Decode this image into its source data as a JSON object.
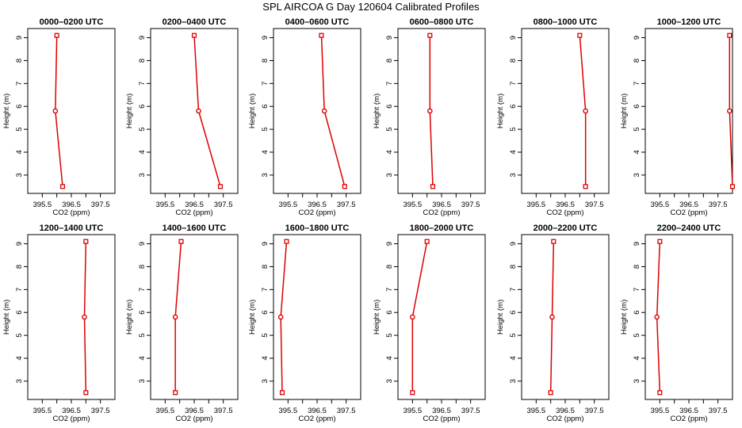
{
  "title": "SPL AIRCOA G  Day 120604  Calibrated Profiles",
  "colors": {
    "series": "#dd0000",
    "axis": "#000000",
    "background": "#ffffff"
  },
  "chart_data": [
    {
      "type": "line",
      "title": "0000–0200 UTC",
      "xlabel": "CO2 (ppm)",
      "ylabel": "Height (m)",
      "xlim": [
        395.0,
        398.0
      ],
      "ylim": [
        2.2,
        9.4
      ],
      "xticks": [
        "395.5",
        "396.5",
        "397.5"
      ],
      "yticks": [
        "3",
        "4",
        "5",
        "6",
        "7",
        "8",
        "9"
      ],
      "x": [
        396.0,
        395.95,
        396.2
      ],
      "y": [
        9.1,
        5.8,
        2.5
      ]
    },
    {
      "type": "line",
      "title": "0200–0400 UTC",
      "xlabel": "CO2 (ppm)",
      "ylabel": "Height (m)",
      "xlim": [
        395.0,
        398.0
      ],
      "ylim": [
        2.2,
        9.4
      ],
      "xticks": [
        "395.5",
        "396.5",
        "397.5"
      ],
      "yticks": [
        "3",
        "4",
        "5",
        "6",
        "7",
        "8",
        "9"
      ],
      "x": [
        396.5,
        396.65,
        397.4
      ],
      "y": [
        9.1,
        5.8,
        2.5
      ]
    },
    {
      "type": "line",
      "title": "0400–0600 UTC",
      "xlabel": "CO2 (ppm)",
      "ylabel": "Height (m)",
      "xlim": [
        395.0,
        398.0
      ],
      "ylim": [
        2.2,
        9.4
      ],
      "xticks": [
        "395.5",
        "396.5",
        "397.5"
      ],
      "yticks": [
        "3",
        "4",
        "5",
        "6",
        "7",
        "8",
        "9"
      ],
      "x": [
        396.65,
        396.75,
        397.45
      ],
      "y": [
        9.1,
        5.8,
        2.5
      ]
    },
    {
      "type": "line",
      "title": "0600–0800 UTC",
      "xlabel": "CO2 (ppm)",
      "ylabel": "Height (m)",
      "xlim": [
        395.0,
        398.0
      ],
      "ylim": [
        2.2,
        9.4
      ],
      "xticks": [
        "395.5",
        "396.5",
        "397.5"
      ],
      "yticks": [
        "3",
        "4",
        "5",
        "6",
        "7",
        "8",
        "9"
      ],
      "x": [
        396.1,
        396.1,
        396.2
      ],
      "y": [
        9.1,
        5.8,
        2.5
      ]
    },
    {
      "type": "line",
      "title": "0800–1000 UTC",
      "xlabel": "CO2 (ppm)",
      "ylabel": "Height (m)",
      "xlim": [
        395.0,
        398.0
      ],
      "ylim": [
        2.2,
        9.4
      ],
      "xticks": [
        "395.5",
        "396.5",
        "397.5"
      ],
      "yticks": [
        "3",
        "4",
        "5",
        "6",
        "7",
        "8",
        "9"
      ],
      "x": [
        397.0,
        397.2,
        397.2
      ],
      "y": [
        9.1,
        5.8,
        2.5
      ]
    },
    {
      "type": "line",
      "title": "1000–1200 UTC",
      "xlabel": "CO2 (ppm)",
      "ylabel": "Height (m)",
      "xlim": [
        395.0,
        398.0
      ],
      "ylim": [
        2.2,
        9.4
      ],
      "xticks": [
        "395.5",
        "396.5",
        "397.5"
      ],
      "yticks": [
        "3",
        "4",
        "5",
        "6",
        "7",
        "8",
        "9"
      ],
      "x": [
        397.9,
        397.9,
        398.0
      ],
      "y": [
        9.1,
        5.8,
        2.5
      ]
    },
    {
      "type": "line",
      "title": "1200–1400 UTC",
      "xlabel": "CO2 (ppm)",
      "ylabel": "Height (m)",
      "xlim": [
        395.0,
        398.0
      ],
      "ylim": [
        2.2,
        9.4
      ],
      "xticks": [
        "395.5",
        "396.5",
        "397.5"
      ],
      "yticks": [
        "3",
        "4",
        "5",
        "6",
        "7",
        "8",
        "9"
      ],
      "x": [
        397.0,
        396.95,
        397.0
      ],
      "y": [
        9.1,
        5.8,
        2.5
      ]
    },
    {
      "type": "line",
      "title": "1400–1600 UTC",
      "xlabel": "CO2 (ppm)",
      "ylabel": "Height (m)",
      "xlim": [
        395.0,
        398.0
      ],
      "ylim": [
        2.2,
        9.4
      ],
      "xticks": [
        "395.5",
        "396.5",
        "397.5"
      ],
      "yticks": [
        "3",
        "4",
        "5",
        "6",
        "7",
        "8",
        "9"
      ],
      "x": [
        396.05,
        395.85,
        395.85
      ],
      "y": [
        9.1,
        5.8,
        2.5
      ]
    },
    {
      "type": "line",
      "title": "1600–1800 UTC",
      "xlabel": "CO2 (ppm)",
      "ylabel": "Height (m)",
      "xlim": [
        395.0,
        398.0
      ],
      "ylim": [
        2.2,
        9.4
      ],
      "xticks": [
        "395.5",
        "396.5",
        "397.5"
      ],
      "yticks": [
        "3",
        "4",
        "5",
        "6",
        "7",
        "8",
        "9"
      ],
      "x": [
        395.45,
        395.25,
        395.3
      ],
      "y": [
        9.1,
        5.8,
        2.5
      ]
    },
    {
      "type": "line",
      "title": "1800–2000 UTC",
      "xlabel": "CO2 (ppm)",
      "ylabel": "Height (m)",
      "xlim": [
        395.0,
        398.0
      ],
      "ylim": [
        2.2,
        9.4
      ],
      "xticks": [
        "395.5",
        "396.5",
        "397.5"
      ],
      "yticks": [
        "3",
        "4",
        "5",
        "6",
        "7",
        "8",
        "9"
      ],
      "x": [
        396.0,
        395.5,
        395.5
      ],
      "y": [
        9.1,
        5.8,
        2.5
      ]
    },
    {
      "type": "line",
      "title": "2000–2200 UTC",
      "xlabel": "CO2 (ppm)",
      "ylabel": "Height (m)",
      "xlim": [
        395.0,
        398.0
      ],
      "ylim": [
        2.2,
        9.4
      ],
      "xticks": [
        "395.5",
        "396.5",
        "397.5"
      ],
      "yticks": [
        "3",
        "4",
        "5",
        "6",
        "7",
        "8",
        "9"
      ],
      "x": [
        396.1,
        396.05,
        396.0
      ],
      "y": [
        9.1,
        5.8,
        2.5
      ]
    },
    {
      "type": "line",
      "title": "2200–2400 UTC",
      "xlabel": "CO2 (ppm)",
      "ylabel": "Height (m)",
      "xlim": [
        395.0,
        398.0
      ],
      "ylim": [
        2.2,
        9.4
      ],
      "xticks": [
        "395.5",
        "396.5",
        "397.5"
      ],
      "yticks": [
        "3",
        "4",
        "5",
        "6",
        "7",
        "8",
        "9"
      ],
      "x": [
        395.5,
        395.4,
        395.5
      ],
      "y": [
        9.1,
        5.8,
        2.5
      ]
    }
  ]
}
